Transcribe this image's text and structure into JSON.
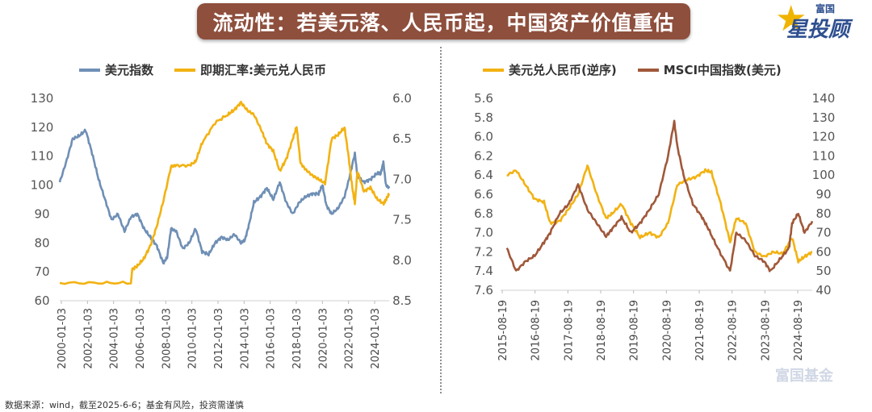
{
  "header": {
    "title": "流动性：若美元落、人民币起，中国资产价值重估",
    "logo_top": "富国",
    "logo_main": "星投顾"
  },
  "footer": {
    "source": "数据来源：wind，截至2025-6-6；基金有风险，投资需谨慎"
  },
  "watermark": "富国基金",
  "colors": {
    "blue": "#6f8fb5",
    "gold": "#f2b212",
    "brown": "#a0583a"
  },
  "chart_data": [
    {
      "type": "line",
      "legend": [
        "美元指数",
        "即期汇率:美元兑人民币"
      ],
      "x_labels": [
        "2000-01-03",
        "2002-01-03",
        "2004-01-03",
        "2006-01-03",
        "2008-01-03",
        "2010-01-03",
        "2012-01-03",
        "2014-01-03",
        "2016-01-03",
        "2018-01-03",
        "2020-01-03",
        "2022-01-03",
        "2024-01-03"
      ],
      "x_range": [
        2000.0,
        2025.45
      ],
      "y_left": {
        "ticks": [
          130,
          120,
          110,
          100,
          90,
          80,
          70,
          60
        ],
        "range": [
          60,
          130
        ]
      },
      "y_right": {
        "ticks": [
          "6.0",
          "6.5",
          "7.0",
          "7.5",
          "8.0",
          "8.5"
        ],
        "range": [
          6.0,
          8.5
        ],
        "inverted": true
      },
      "series": [
        {
          "name": "美元指数",
          "axis": "left",
          "x": [
            2000.0,
            2000.5,
            2001.0,
            2001.5,
            2002.0,
            2002.5,
            2003.0,
            2003.5,
            2004.0,
            2004.5,
            2005.0,
            2005.5,
            2006.0,
            2006.5,
            2007.0,
            2007.5,
            2008.0,
            2008.3,
            2008.6,
            2009.0,
            2009.5,
            2010.0,
            2010.5,
            2011.0,
            2011.5,
            2012.0,
            2012.5,
            2013.0,
            2013.5,
            2014.0,
            2014.3,
            2014.6,
            2015.0,
            2015.5,
            2016.0,
            2016.5,
            2017.0,
            2017.5,
            2018.0,
            2018.5,
            2019.0,
            2019.5,
            2020.0,
            2020.3,
            2020.6,
            2021.0,
            2021.5,
            2022.0,
            2022.4,
            2022.8,
            2023.0,
            2023.5,
            2024.0,
            2024.5,
            2024.8,
            2025.0,
            2025.2,
            2025.45
          ],
          "y": [
            101,
            108,
            116,
            117,
            119,
            111,
            102,
            95,
            88,
            90,
            84,
            89,
            90,
            85,
            82,
            79,
            73,
            75,
            85,
            84,
            78,
            80,
            85,
            77,
            76,
            80,
            82,
            81,
            83,
            80,
            81,
            86,
            94,
            96,
            99,
            95,
            101,
            94,
            90,
            94,
            96,
            97,
            97,
            100,
            93,
            90,
            92,
            96,
            103,
            111,
            103,
            101,
            102,
            104,
            104,
            108,
            100,
            99
          ]
        },
        {
          "name": "即期汇率:美元兑人民币",
          "axis": "right",
          "x": [
            2000.0,
            2003.0,
            2005.5,
            2005.6,
            2006.0,
            2006.5,
            2007.0,
            2007.5,
            2008.0,
            2008.6,
            2009.0,
            2010.0,
            2010.5,
            2011.0,
            2012.0,
            2013.0,
            2013.5,
            2014.0,
            2014.5,
            2015.0,
            2015.6,
            2016.0,
            2016.5,
            2017.0,
            2017.5,
            2018.0,
            2018.3,
            2018.6,
            2019.0,
            2019.5,
            2020.0,
            2020.5,
            2021.0,
            2021.5,
            2022.0,
            2022.3,
            2022.6,
            2022.8,
            2023.0,
            2023.5,
            2024.0,
            2024.5,
            2025.0,
            2025.2,
            2025.45
          ],
          "y": [
            8.28,
            8.28,
            8.28,
            8.11,
            8.07,
            7.98,
            7.82,
            7.58,
            7.27,
            6.84,
            6.83,
            6.83,
            6.78,
            6.55,
            6.3,
            6.2,
            6.14,
            6.05,
            6.15,
            6.2,
            6.4,
            6.56,
            6.65,
            6.9,
            6.75,
            6.5,
            6.35,
            6.8,
            6.88,
            6.95,
            7.0,
            7.05,
            6.5,
            6.45,
            6.36,
            6.7,
            7.1,
            7.3,
            6.9,
            7.15,
            7.1,
            7.24,
            7.3,
            7.25,
            7.18
          ]
        }
      ]
    },
    {
      "type": "line",
      "legend": [
        "美元兑人民币(逆序)",
        "MSCI中国指数(美元)"
      ],
      "x_labels": [
        "2015-08-19",
        "2016-08-19",
        "2017-08-19",
        "2018-08-19",
        "2019-08-19",
        "2020-08-19",
        "2021-08-19",
        "2022-08-19",
        "2023-08-19",
        "2024-08-19"
      ],
      "x_range": [
        2015.4,
        2025.45
      ],
      "y_left": {
        "ticks": [
          "5.6",
          "5.8",
          "6.0",
          "6.2",
          "6.4",
          "6.6",
          "6.8",
          "7.0",
          "7.2",
          "7.4",
          "7.6"
        ],
        "range": [
          5.6,
          7.6
        ],
        "inverted": true
      },
      "y_right": {
        "ticks": [
          140,
          130,
          120,
          110,
          100,
          90,
          80,
          70,
          60,
          50,
          40
        ],
        "range": [
          40,
          140
        ]
      },
      "series": [
        {
          "name": "美元兑人民币(逆序)",
          "axis": "left",
          "x": [
            2015.6,
            2015.9,
            2016.2,
            2016.5,
            2016.8,
            2017.0,
            2017.3,
            2017.6,
            2017.9,
            2018.2,
            2018.5,
            2018.8,
            2019.0,
            2019.3,
            2019.6,
            2019.9,
            2020.2,
            2020.5,
            2020.8,
            2021.1,
            2021.4,
            2021.7,
            2022.0,
            2022.2,
            2022.5,
            2022.8,
            2023.0,
            2023.3,
            2023.6,
            2023.9,
            2024.2,
            2024.5,
            2024.8,
            2025.0,
            2025.2,
            2025.45
          ],
          "y": [
            6.4,
            6.35,
            6.5,
            6.65,
            6.68,
            6.9,
            6.88,
            6.75,
            6.6,
            6.3,
            6.6,
            6.85,
            6.8,
            6.7,
            6.9,
            7.05,
            7.0,
            7.05,
            6.9,
            6.5,
            6.45,
            6.42,
            6.35,
            6.37,
            6.7,
            7.1,
            6.85,
            6.9,
            7.2,
            7.25,
            7.2,
            7.22,
            7.05,
            7.3,
            7.25,
            7.2
          ]
        },
        {
          "name": "MSCI中国指数(美元)",
          "axis": "right",
          "x": [
            2015.6,
            2015.9,
            2016.2,
            2016.5,
            2016.8,
            2017.0,
            2017.3,
            2017.6,
            2017.9,
            2018.2,
            2018.5,
            2018.8,
            2019.0,
            2019.3,
            2019.6,
            2019.9,
            2020.2,
            2020.5,
            2020.8,
            2021.0,
            2021.1,
            2021.3,
            2021.6,
            2021.9,
            2022.1,
            2022.4,
            2022.8,
            2023.0,
            2023.3,
            2023.6,
            2023.9,
            2024.1,
            2024.4,
            2024.7,
            2024.8,
            2025.0,
            2025.2,
            2025.45
          ],
          "y": [
            62,
            50,
            55,
            58,
            65,
            70,
            80,
            85,
            95,
            82,
            75,
            68,
            72,
            78,
            70,
            75,
            82,
            90,
            110,
            128,
            115,
            100,
            85,
            78,
            72,
            62,
            50,
            70,
            66,
            58,
            55,
            50,
            56,
            62,
            75,
            80,
            70,
            76
          ]
        }
      ]
    }
  ]
}
